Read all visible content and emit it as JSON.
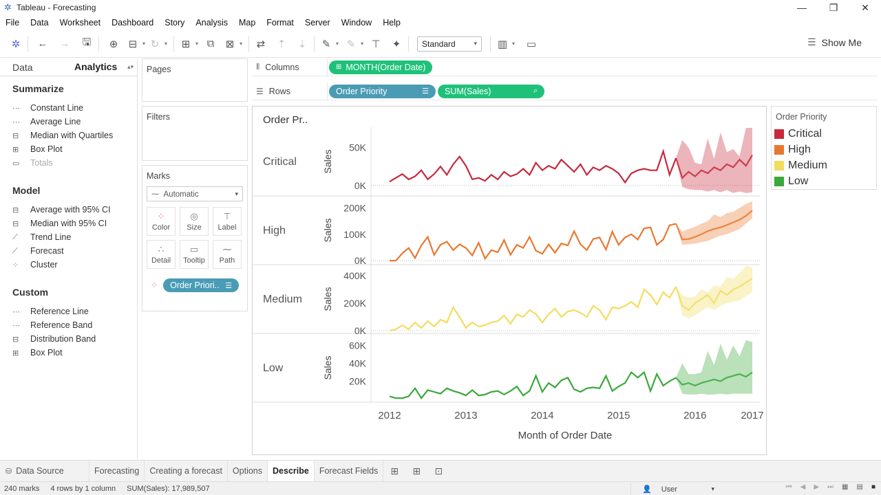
{
  "window": {
    "title": "Tableau - Forecasting"
  },
  "menu": [
    "File",
    "Data",
    "Worksheet",
    "Dashboard",
    "Story",
    "Analysis",
    "Map",
    "Format",
    "Server",
    "Window",
    "Help"
  ],
  "toolbar": {
    "fit_select": "Standard",
    "show_me": "Show Me"
  },
  "left_panel": {
    "tabs": [
      "Data",
      "Analytics"
    ],
    "active_tab": "Analytics",
    "sections": [
      {
        "heading": "Summarize",
        "items": [
          {
            "label": "Constant Line",
            "icon": "constant-line-icon",
            "disabled": false
          },
          {
            "label": "Average Line",
            "icon": "average-line-icon",
            "disabled": false
          },
          {
            "label": "Median with Quartiles",
            "icon": "median-quartiles-icon",
            "disabled": false
          },
          {
            "label": "Box Plot",
            "icon": "box-plot-icon",
            "disabled": false
          },
          {
            "label": "Totals",
            "icon": "totals-icon",
            "disabled": true
          }
        ]
      },
      {
        "heading": "Model",
        "items": [
          {
            "label": "Average with 95% CI",
            "icon": "average-ci-icon",
            "disabled": false
          },
          {
            "label": "Median with 95% CI",
            "icon": "median-ci-icon",
            "disabled": false
          },
          {
            "label": "Trend Line",
            "icon": "trend-line-icon",
            "disabled": false
          },
          {
            "label": "Forecast",
            "icon": "forecast-icon",
            "disabled": false
          },
          {
            "label": "Cluster",
            "icon": "cluster-icon",
            "disabled": false
          }
        ]
      },
      {
        "heading": "Custom",
        "items": [
          {
            "label": "Reference Line",
            "icon": "reference-line-icon",
            "disabled": false
          },
          {
            "label": "Reference Band",
            "icon": "reference-band-icon",
            "disabled": false
          },
          {
            "label": "Distribution Band",
            "icon": "distribution-band-icon",
            "disabled": false
          },
          {
            "label": "Box Plot",
            "icon": "box-plot-icon",
            "disabled": false
          }
        ]
      }
    ]
  },
  "cards": {
    "pages": "Pages",
    "filters": "Filters",
    "marks": {
      "title": "Marks",
      "type": "Automatic",
      "buttons": [
        "Color",
        "Size",
        "Label",
        "Detail",
        "Tooltip",
        "Path"
      ],
      "color_pill": "Order Priori.."
    }
  },
  "shelves": {
    "columns_label": "Columns",
    "rows_label": "Rows",
    "columns_pill": "MONTH(Order Date)",
    "rows_pills": [
      "Order Priority",
      "SUM(Sales)"
    ]
  },
  "legend": {
    "title": "Order Priority",
    "items": [
      {
        "label": "Critical",
        "color": "#c8283c"
      },
      {
        "label": "High",
        "color": "#e8782f"
      },
      {
        "label": "Medium",
        "color": "#f2dc5e"
      },
      {
        "label": "Low",
        "color": "#3aa83a"
      }
    ]
  },
  "chart_data": {
    "type": "line",
    "header_label": "Order Pr..",
    "xlabel": "Month of Order Date",
    "x_ticks": [
      "2012",
      "2013",
      "2014",
      "2015",
      "2016",
      "2017"
    ],
    "forecast_start": "2016",
    "panels": [
      {
        "name": "Critical",
        "ylabel": "Sales",
        "color": "#c8283c",
        "ylim": [
          -12000,
          75000
        ],
        "yticks": [
          0,
          50000
        ],
        "ytick_labels": [
          "0K",
          "50K"
        ],
        "values": [
          5000,
          10000,
          15000,
          8000,
          12000,
          20000,
          8000,
          15000,
          25000,
          14000,
          28000,
          38000,
          26000,
          8000,
          10000,
          6000,
          14000,
          8000,
          18000,
          12000,
          15000,
          22000,
          14000,
          30000,
          20000,
          26000,
          22000,
          34000,
          26000,
          18000,
          28000,
          14000,
          24000,
          20000,
          26000,
          22000,
          16000,
          4000,
          16000,
          20000,
          22000,
          20000,
          20000,
          45000,
          14000,
          36000
        ],
        "forecast": [
          10000,
          18000,
          12000,
          20000,
          16000,
          24000,
          20000,
          28000,
          24000,
          34000,
          26000,
          40000
        ],
        "forecast_upper": [
          60000,
          50000,
          30000,
          28000,
          62000,
          35000,
          70000,
          44000,
          48000,
          38000,
          80000,
          78000
        ],
        "forecast_lower": [
          -2000,
          -5000,
          -6000,
          -6000,
          -8000,
          -6000,
          -9000,
          -6000,
          -10000,
          -8000,
          -10000,
          -9000
        ]
      },
      {
        "name": "High",
        "ylabel": "Sales",
        "color": "#e8782f",
        "ylim": [
          -10000,
          240000
        ],
        "yticks": [
          0,
          100000,
          200000
        ],
        "ytick_labels": [
          "0K",
          "100K",
          "200K"
        ],
        "values": [
          0,
          0,
          28000,
          48000,
          10000,
          58000,
          90000,
          22000,
          60000,
          72000,
          40000,
          62000,
          48000,
          20000,
          68000,
          8000,
          40000,
          32000,
          78000,
          22000,
          60000,
          48000,
          90000,
          38000,
          26000,
          62000,
          30000,
          65000,
          58000,
          112000,
          62000,
          40000,
          82000,
          88000,
          42000,
          110000,
          60000,
          88000,
          100000,
          80000,
          122000,
          126000,
          60000,
          80000,
          134000,
          140000
        ],
        "forecast": [
          80000,
          82000,
          90000,
          100000,
          112000,
          120000,
          126000,
          135000,
          145000,
          155000,
          170000,
          190000
        ],
        "forecast_upper": [
          110000,
          120000,
          128000,
          140000,
          150000,
          175000,
          165000,
          180000,
          185000,
          200000,
          215000,
          225000
        ],
        "forecast_lower": [
          60000,
          62000,
          65000,
          70000,
          75000,
          85000,
          95000,
          100000,
          110000,
          120000,
          140000,
          160000
        ]
      },
      {
        "name": "Medium",
        "ylabel": "Sales",
        "color": "#f2dc5e",
        "ylim": [
          -10000,
          470000
        ],
        "yticks": [
          0,
          200000,
          400000
        ],
        "ytick_labels": [
          "0K",
          "200K",
          "400K"
        ],
        "values": [
          0,
          10000,
          40000,
          10000,
          60000,
          20000,
          70000,
          30000,
          80000,
          60000,
          170000,
          100000,
          20000,
          60000,
          30000,
          40000,
          60000,
          70000,
          110000,
          50000,
          120000,
          100000,
          150000,
          120000,
          60000,
          120000,
          160000,
          100000,
          140000,
          150000,
          130000,
          100000,
          180000,
          150000,
          80000,
          170000,
          160000,
          180000,
          210000,
          170000,
          300000,
          260000,
          190000,
          280000,
          240000,
          320000
        ],
        "forecast": [
          180000,
          150000,
          200000,
          230000,
          260000,
          200000,
          290000,
          260000,
          300000,
          320000,
          350000,
          380000
        ],
        "forecast_upper": [
          260000,
          240000,
          250000,
          300000,
          280000,
          330000,
          320000,
          390000,
          380000,
          420000,
          470000,
          460000
        ],
        "forecast_lower": [
          110000,
          90000,
          110000,
          140000,
          170000,
          150000,
          180000,
          200000,
          210000,
          220000,
          250000,
          280000
        ]
      },
      {
        "name": "Low",
        "ylabel": "Sales",
        "color": "#3aa83a",
        "ylim": [
          -2000,
          72000
        ],
        "yticks": [
          20000,
          40000,
          60000
        ],
        "ytick_labels": [
          "20K",
          "40K",
          "60K"
        ],
        "values": [
          3000,
          1000,
          1000,
          3000,
          12000,
          1000,
          10000,
          8000,
          6000,
          12000,
          9000,
          7000,
          4000,
          10000,
          4000,
          5000,
          8000,
          9000,
          5000,
          9000,
          14000,
          4000,
          9000,
          26000,
          8000,
          18000,
          13000,
          21000,
          24000,
          11000,
          8000,
          12000,
          13000,
          12000,
          26000,
          9000,
          14000,
          18000,
          30000,
          24000,
          30000,
          9000,
          28000,
          15000,
          20000,
          24000
        ],
        "forecast": [
          16000,
          18000,
          15000,
          18000,
          20000,
          22000,
          20000,
          24000,
          26000,
          28000,
          25000,
          30000
        ],
        "forecast_upper": [
          40000,
          28000,
          28000,
          30000,
          54000,
          38000,
          62000,
          44000,
          60000,
          48000,
          66000,
          64000
        ],
        "forecast_lower": [
          6000,
          5000,
          5000,
          6000,
          5000,
          5000,
          6000,
          5000,
          6000,
          6000,
          6000,
          6000
        ]
      }
    ]
  },
  "sheet_tabs": {
    "data_source": "Data Source",
    "tabs": [
      "Forecasting",
      "Creating a forecast",
      "Options",
      "Describe",
      "Forecast Fields"
    ],
    "active": "Describe"
  },
  "status": {
    "marks": "240 marks",
    "rows_cols": "4 rows by 1 column",
    "sum": "SUM(Sales): 17,989,507",
    "user": "User"
  }
}
